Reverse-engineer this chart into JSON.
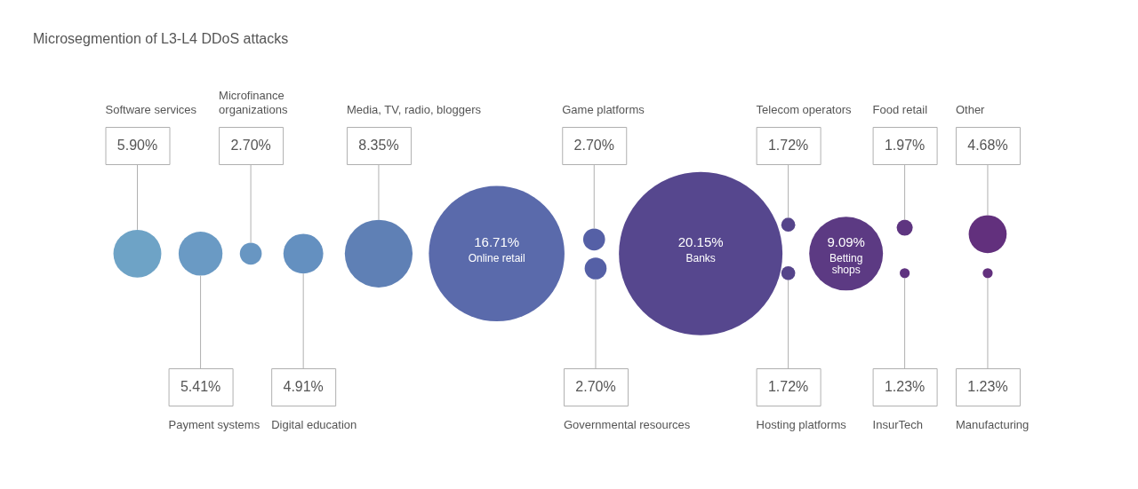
{
  "chart_data": {
    "type": "other",
    "title": "Microsegmention of L3-L4 DDoS attacks",
    "categories": [
      "Software services",
      "Payment systems",
      "Microfinance organizations",
      "Digital education",
      "Media, TV, radio, bloggers",
      "Online retail",
      "Game platforms",
      "Governmental resources",
      "Banks",
      "Telecom operators",
      "Hosting platforms",
      "Betting shops",
      "Food retail",
      "InsurTech",
      "Other",
      "Manufacturing"
    ],
    "values": [
      5.9,
      5.41,
      2.7,
      4.91,
      8.35,
      16.71,
      2.7,
      2.7,
      20.15,
      1.72,
      1.72,
      9.09,
      1.97,
      1.23,
      4.68,
      1.23
    ],
    "value_labels": [
      "5.90%",
      "5.41%",
      "2.70%",
      "4.91%",
      "8.35%",
      "16.71%",
      "2.70%",
      "2.70%",
      "20.15%",
      "1.72%",
      "1.72%",
      "9.09%",
      "1.97%",
      "1.23%",
      "4.68%",
      "1.23%"
    ],
    "colors": [
      "#6ea3c6",
      "#6a9ac4",
      "#6896c2",
      "#6490c0",
      "#5f80b5",
      "#5a6aab",
      "#5560a6",
      "#5560a6",
      "#56478e",
      "#55448a",
      "#55448a",
      "#5c3a83",
      "#5e3580",
      "#5f3380",
      "#62307d",
      "#62307d"
    ]
  }
}
